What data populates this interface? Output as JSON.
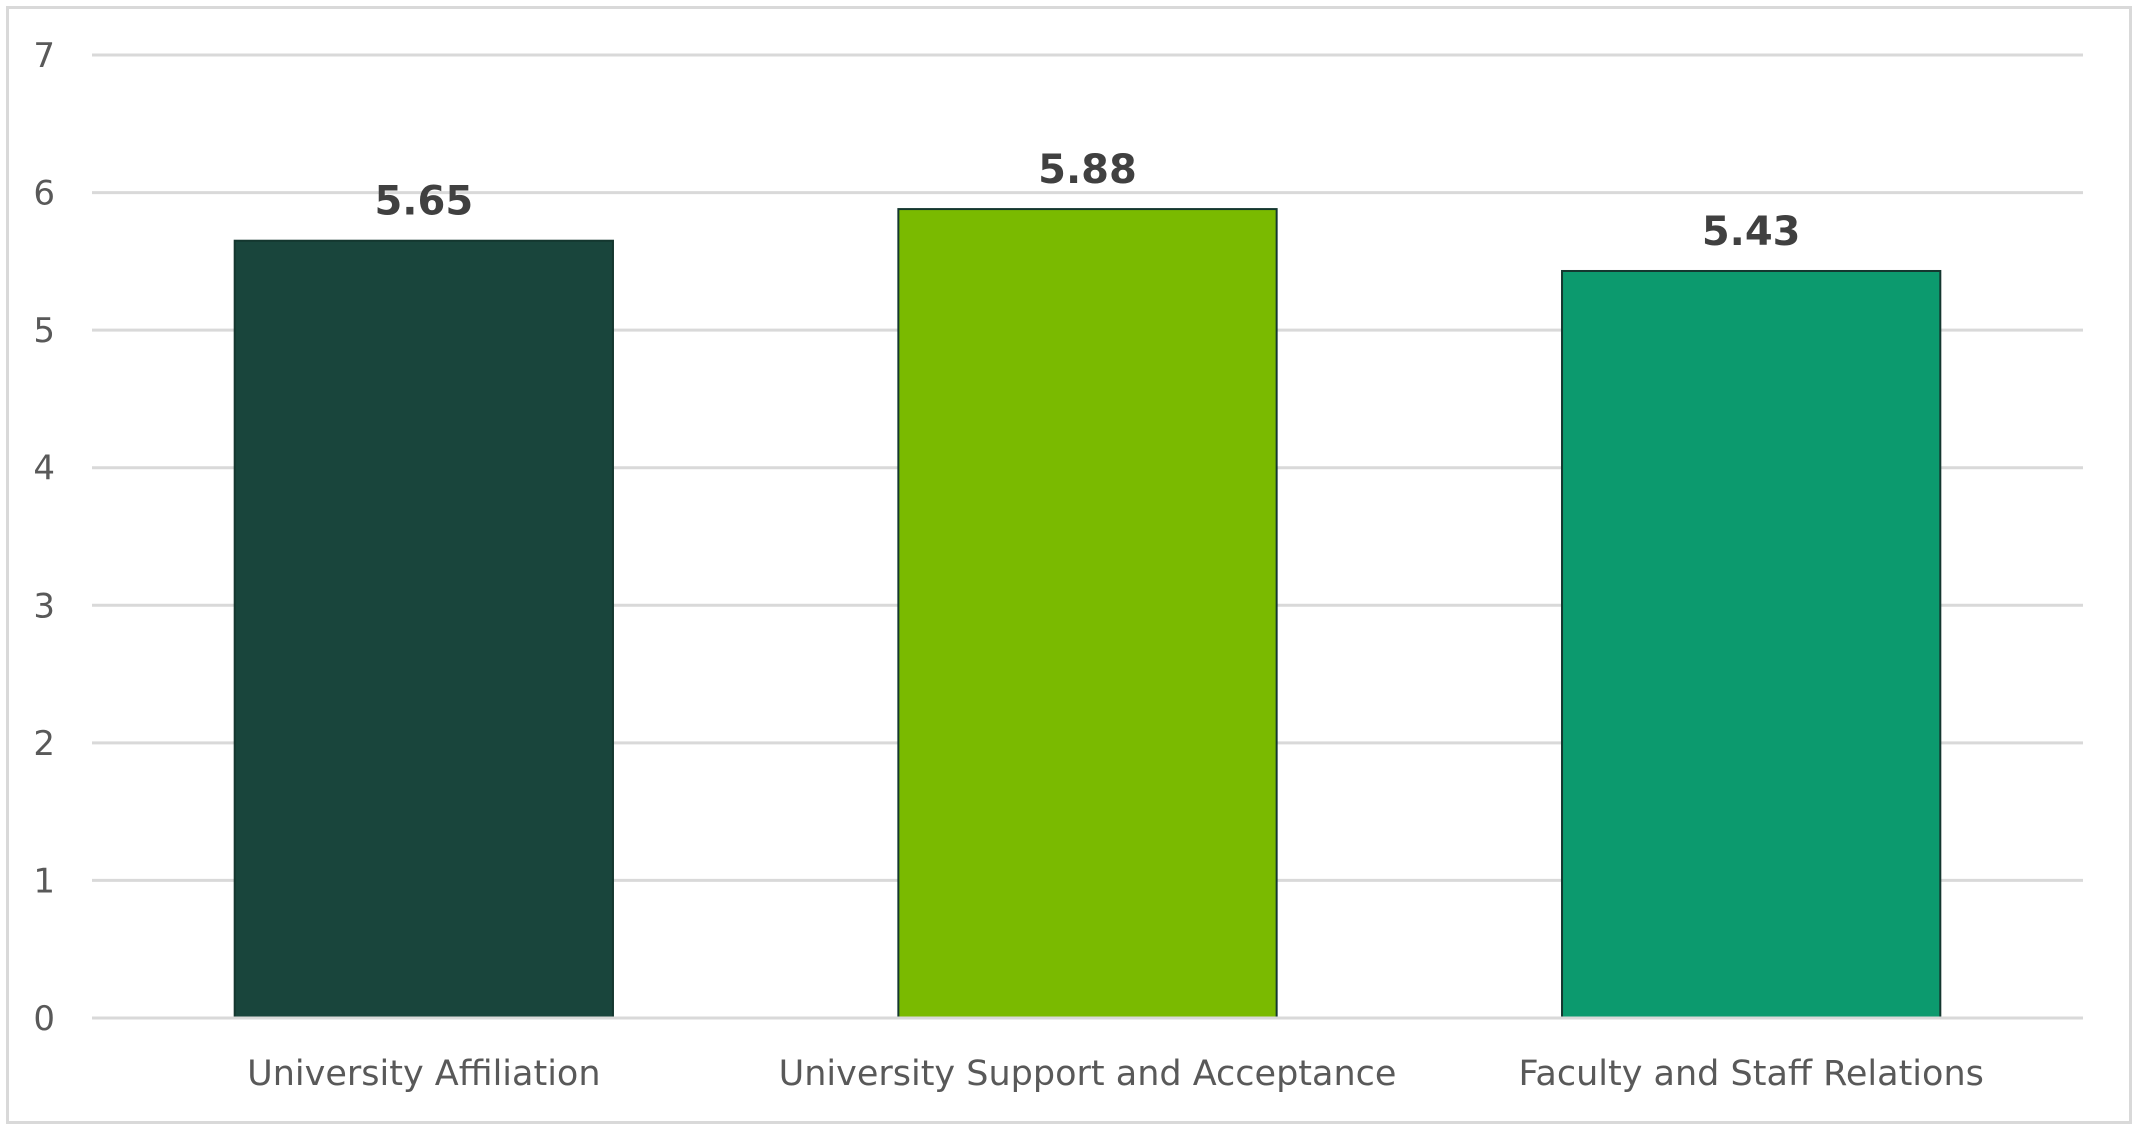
{
  "chart_data": {
    "type": "bar",
    "title": "",
    "xlabel": "",
    "ylabel": "",
    "categories": [
      "University Affiliation",
      "University Support and Acceptance",
      "Faculty and Staff Relations"
    ],
    "values": [
      5.65,
      5.88,
      5.43
    ],
    "data_labels": [
      "5.65",
      "5.88",
      "5.43"
    ],
    "colors": [
      "#19453c",
      "#7aba00",
      "#0c9a6e"
    ],
    "bar_border_color": "#14372f",
    "ylim": [
      0,
      7
    ],
    "yticks": [
      0,
      1,
      2,
      3,
      4,
      5,
      6,
      7
    ],
    "ytick_labels": [
      "0",
      "1",
      "2",
      "3",
      "4",
      "5",
      "6",
      "7"
    ],
    "grid": true,
    "legend": "none"
  }
}
